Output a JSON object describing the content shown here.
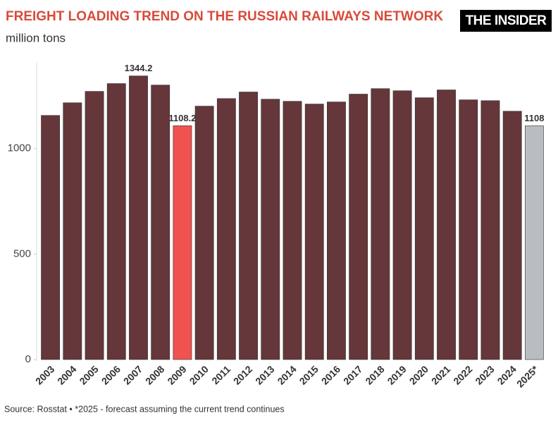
{
  "chart_data": {
    "type": "bar",
    "title": "FREIGHT LOADING TREND ON THE RUSSIAN RAILWAYS NETWORK",
    "subtitle": "million tons",
    "logo": "THE INSIDER",
    "source": "Source: Rosstat • *2025 - forecast assuming the current trend continues",
    "categories": [
      "2003",
      "2004",
      "2005",
      "2006",
      "2007",
      "2008",
      "2009",
      "2010",
      "2011",
      "2012",
      "2013",
      "2014",
      "2015",
      "2016",
      "2017",
      "2018",
      "2019",
      "2020",
      "2021",
      "2022",
      "2023",
      "2024",
      "2025*"
    ],
    "values": [
      1157,
      1217,
      1271,
      1308,
      1344.2,
      1301,
      1108.2,
      1201,
      1237,
      1268,
      1234,
      1224,
      1211,
      1221,
      1258,
      1284,
      1274,
      1241,
      1278,
      1231,
      1227,
      1177,
      1108
    ],
    "value_labels": [
      null,
      null,
      null,
      null,
      "1344.2",
      null,
      "1108.2",
      null,
      null,
      null,
      null,
      null,
      null,
      null,
      null,
      null,
      null,
      null,
      null,
      null,
      null,
      null,
      "1108"
    ],
    "colors": [
      "#65363a",
      "#65363a",
      "#65363a",
      "#65363a",
      "#65363a",
      "#65363a",
      "#f0524f",
      "#65363a",
      "#65363a",
      "#65363a",
      "#65363a",
      "#65363a",
      "#65363a",
      "#65363a",
      "#65363a",
      "#65363a",
      "#65363a",
      "#65363a",
      "#65363a",
      "#65363a",
      "#65363a",
      "#65363a",
      "#b9bcc1"
    ],
    "ylim": [
      0,
      1400
    ],
    "yticks": [
      0,
      500,
      1000
    ],
    "grid": false
  }
}
